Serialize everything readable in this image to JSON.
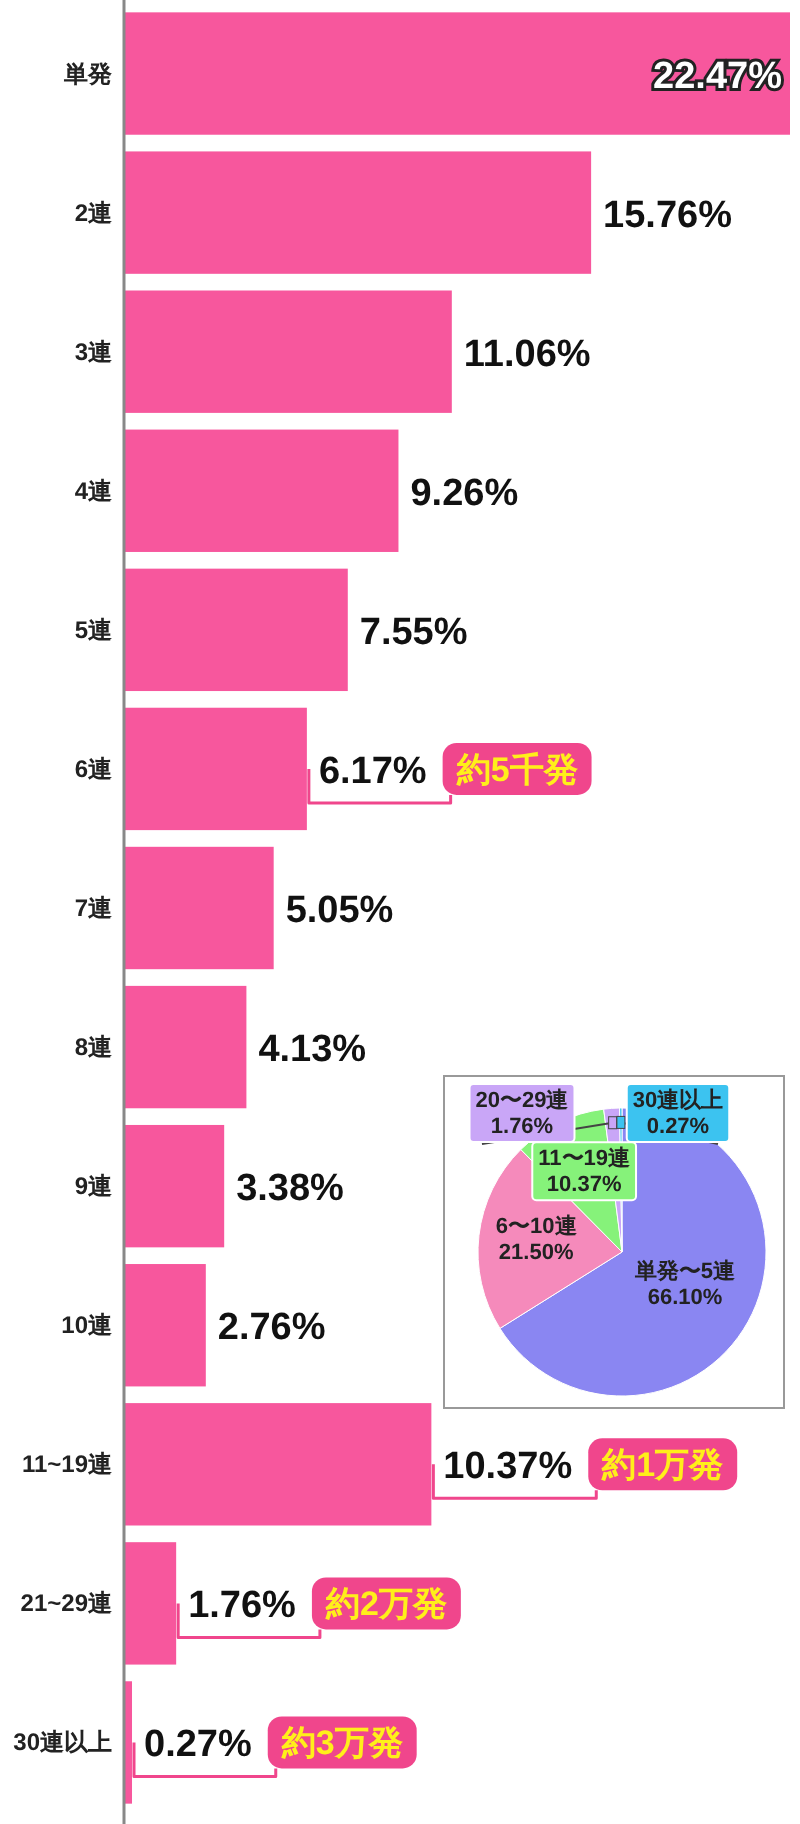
{
  "chart_data": [
    {
      "type": "bar",
      "orientation": "horizontal",
      "color": "#f7579d",
      "categories": [
        "単発",
        "2連",
        "3連",
        "4連",
        "5連",
        "6連",
        "7連",
        "8連",
        "9連",
        "10連",
        "11~19連",
        "21~29連",
        "30連以上"
      ],
      "values": [
        22.47,
        15.76,
        11.06,
        9.26,
        7.55,
        6.17,
        5.05,
        4.13,
        3.38,
        2.76,
        10.37,
        1.76,
        0.27
      ],
      "value_labels": [
        "22.47%",
        "15.76%",
        "11.06%",
        "9.26%",
        "7.55%",
        "6.17%",
        "5.05%",
        "4.13%",
        "3.38%",
        "2.76%",
        "10.37%",
        "1.76%",
        "0.27%"
      ],
      "annotations": [
        {
          "text": "約5千発",
          "x": 6.17,
          "y": "6連"
        },
        {
          "text": "約1万発",
          "x": 10.37,
          "y": "11~19連"
        },
        {
          "text": "約2万発",
          "x": 1.76,
          "y": "21~29連"
        },
        {
          "text": "約3万発",
          "x": 0.27,
          "y": "30連以上"
        }
      ]
    },
    {
      "type": "pie",
      "categories": [
        "単発〜5連",
        "6〜10連",
        "11〜19連",
        "20〜29連",
        "30連以上"
      ],
      "values": [
        66.1,
        21.5,
        10.37,
        1.76,
        0.27
      ],
      "value_labels": [
        "66.10%",
        "21.50%",
        "10.37%",
        "1.76%",
        "0.27%"
      ],
      "colors": [
        "#8a86f2",
        "#f58abb",
        "#86f27a",
        "#c9a6f7",
        "#3cc3f0"
      ]
    }
  ]
}
